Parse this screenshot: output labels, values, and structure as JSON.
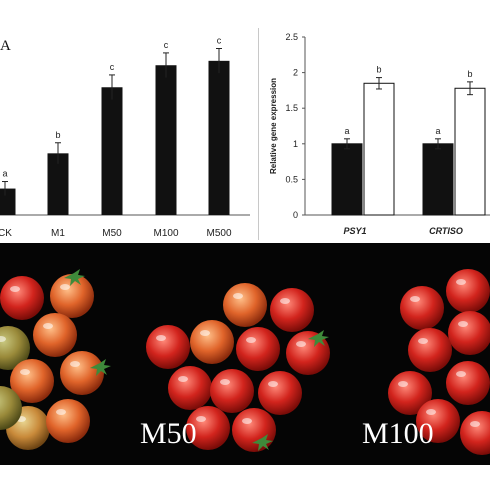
{
  "panel_label": "A",
  "colors": {
    "bar_dark": "#111111",
    "bar_light": "#ffffff",
    "axis": "#555555",
    "photo_bg": "#050505"
  },
  "chart_data": [
    {
      "type": "bar",
      "categories": [
        "CK",
        "M1",
        "M50",
        "M100",
        "M500"
      ],
      "values": [
        0.3,
        0.7,
        1.45,
        1.7,
        1.75
      ],
      "errors": [
        0.08,
        0.12,
        0.14,
        0.14,
        0.14
      ],
      "letters": [
        "a",
        "b",
        "c",
        "c",
        "c"
      ],
      "ylim": [
        0,
        2.1
      ],
      "grid": false,
      "note": ""
    },
    {
      "type": "bar",
      "categories": [
        "PSY1",
        "CRTISO"
      ],
      "series": [
        {
          "values": [
            1.0,
            1.0
          ],
          "errors": [
            0.07,
            0.07
          ],
          "letters": [
            "a",
            "a"
          ],
          "color": "#111111"
        },
        {
          "values": [
            1.85,
            1.78
          ],
          "errors": [
            0.08,
            0.09
          ],
          "letters": [
            "b",
            "b"
          ],
          "color": "#ffffff"
        }
      ],
      "ylabel": "Relative gene expression",
      "yticks": [
        "0",
        "0.5",
        "1",
        "1.5",
        "2",
        "2.5"
      ],
      "ylim": [
        0,
        2.5
      ],
      "grid": false
    }
  ],
  "photos": {
    "labels": [
      "M50",
      "M100"
    ]
  }
}
